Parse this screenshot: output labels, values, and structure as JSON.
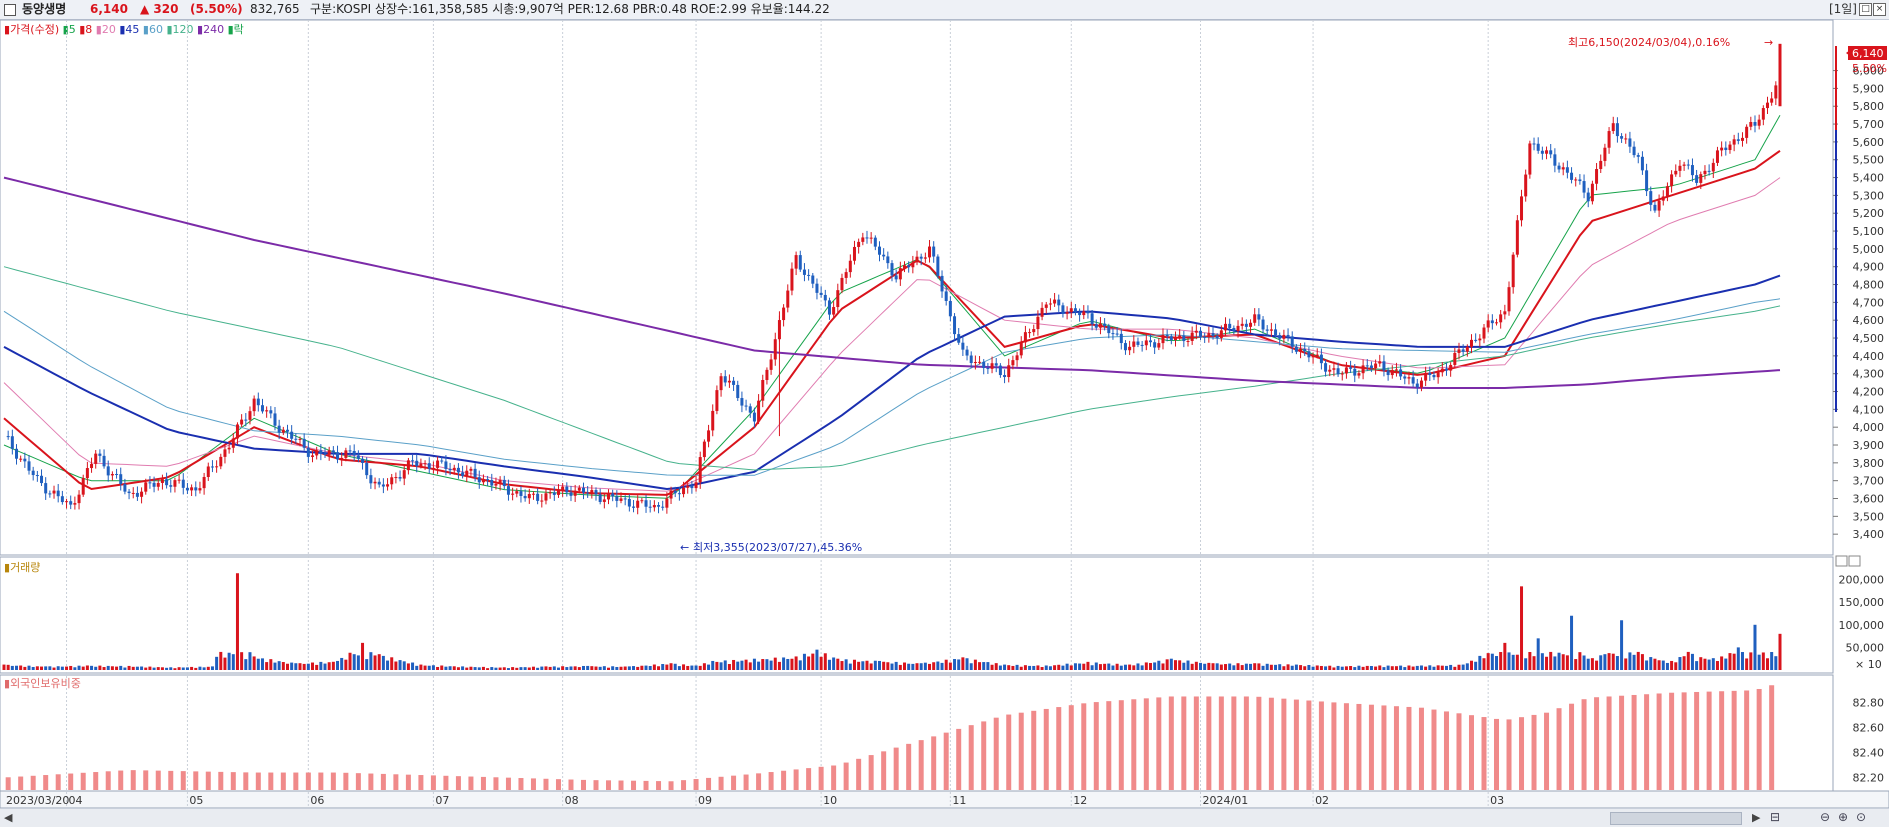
{
  "header": {
    "name": "동양생명",
    "price": "6,140",
    "change": "▲ 320",
    "rate": "(5.50%)",
    "volume": "832,765",
    "info": "구분:KOSPI 상장수:161,358,585 시총:9,907억 PER:12.68 PBR:0.48 ROE:2.99 유보율:144.22",
    "period": "[1일]"
  },
  "legend": {
    "price": "가격(수정)",
    "ma": [
      {
        "label": "5",
        "color": "#16a34a"
      },
      {
        "label": "8",
        "color": "#d9141c"
      },
      {
        "label": "20",
        "color": "#e07cb0"
      },
      {
        "label": "45",
        "color": "#1a2fb0"
      },
      {
        "label": "60",
        "color": "#5aa0c8"
      },
      {
        "label": "120",
        "color": "#46b28c"
      },
      {
        "label": "240",
        "color": "#7b2ba8"
      }
    ],
    "extra": "락"
  },
  "annotations": {
    "high": "최고6,150(2024/03/04),0.16%",
    "low": "최저3,355(2023/07/27),45.36%",
    "last_price": "6,140",
    "last_rate": "5.50%"
  },
  "volume_label": "거래량",
  "volume_multiplier": "× 10",
  "foreign_label": "외국인보유비중",
  "chart_data": {
    "type": "candlestick",
    "x_labels": [
      "2023/03/20",
      "04",
      "05",
      "06",
      "07",
      "08",
      "09",
      "10",
      "11",
      "12",
      "2024/01",
      "02",
      "03"
    ],
    "price_axis": [
      "6,000",
      "5,900",
      "5,800",
      "5,700",
      "5,600",
      "5,500",
      "5,400",
      "5,300",
      "5,200",
      "5,100",
      "5,000",
      "4,900",
      "4,800",
      "4,700",
      "4,600",
      "4,500",
      "4,400",
      "4,300",
      "4,200",
      "4,100",
      "4,000",
      "3,900",
      "3,800",
      "3,700",
      "3,600",
      "3,500",
      "3,400"
    ],
    "volume_axis": [
      "200,000",
      "150,000",
      "100,000",
      "50,000"
    ],
    "foreign_axis": [
      "82.80",
      "82.60",
      "82.40",
      "82.20"
    ],
    "price_range": [
      3300,
      6250
    ],
    "volume_max": 230000,
    "foreign_range": [
      82.1,
      82.95
    ],
    "price_path": [
      [
        0,
        3950
      ],
      [
        8,
        3700
      ],
      [
        16,
        3550
      ],
      [
        22,
        3850
      ],
      [
        30,
        3620
      ],
      [
        38,
        3700
      ],
      [
        46,
        3650
      ],
      [
        54,
        3900
      ],
      [
        60,
        4150
      ],
      [
        66,
        4000
      ],
      [
        74,
        3850
      ],
      [
        84,
        3850
      ],
      [
        90,
        3650
      ],
      [
        98,
        3800
      ],
      [
        106,
        3780
      ],
      [
        116,
        3700
      ],
      [
        126,
        3600
      ],
      [
        136,
        3650
      ],
      [
        146,
        3600
      ],
      [
        156,
        3550
      ],
      [
        166,
        3700
      ],
      [
        172,
        4300
      ],
      [
        180,
        4050
      ],
      [
        190,
        4950
      ],
      [
        198,
        4650
      ],
      [
        206,
        5100
      ],
      [
        214,
        4850
      ],
      [
        222,
        5000
      ],
      [
        230,
        4400
      ],
      [
        240,
        4300
      ],
      [
        250,
        4700
      ],
      [
        260,
        4620
      ],
      [
        270,
        4450
      ],
      [
        280,
        4500
      ],
      [
        290,
        4520
      ],
      [
        300,
        4600
      ],
      [
        310,
        4450
      ],
      [
        320,
        4300
      ],
      [
        330,
        4350
      ],
      [
        338,
        4250
      ],
      [
        344,
        4300
      ],
      [
        352,
        4480
      ],
      [
        360,
        4650
      ],
      [
        366,
        5600
      ],
      [
        374,
        5450
      ],
      [
        380,
        5300
      ],
      [
        386,
        5700
      ],
      [
        392,
        5500
      ],
      [
        396,
        5200
      ],
      [
        402,
        5500
      ],
      [
        406,
        5380
      ],
      [
        412,
        5550
      ],
      [
        420,
        5700
      ],
      [
        426,
        5950
      ]
    ],
    "ma_lines": {
      "5": [
        [
          0,
          3900
        ],
        [
          20,
          3700
        ],
        [
          40,
          3700
        ],
        [
          60,
          4050
        ],
        [
          80,
          3850
        ],
        [
          100,
          3750
        ],
        [
          120,
          3650
        ],
        [
          140,
          3620
        ],
        [
          160,
          3600
        ],
        [
          180,
          4100
        ],
        [
          200,
          4750
        ],
        [
          220,
          4950
        ],
        [
          240,
          4400
        ],
        [
          260,
          4600
        ],
        [
          280,
          4480
        ],
        [
          300,
          4550
        ],
        [
          320,
          4350
        ],
        [
          340,
          4300
        ],
        [
          360,
          4500
        ],
        [
          380,
          5300
        ],
        [
          400,
          5350
        ],
        [
          420,
          5500
        ],
        [
          426,
          5750
        ]
      ],
      "8": [
        [
          0,
          4050
        ],
        [
          20,
          3650
        ],
        [
          40,
          3720
        ],
        [
          60,
          4000
        ],
        [
          80,
          3820
        ],
        [
          100,
          3780
        ],
        [
          120,
          3680
        ],
        [
          140,
          3630
        ],
        [
          160,
          3620
        ],
        [
          180,
          4000
        ],
        [
          200,
          4650
        ],
        [
          220,
          4950
        ],
        [
          240,
          4450
        ],
        [
          260,
          4580
        ],
        [
          280,
          4500
        ],
        [
          300,
          4520
        ],
        [
          320,
          4350
        ],
        [
          340,
          4290
        ],
        [
          360,
          4400
        ],
        [
          380,
          5150
        ],
        [
          400,
          5300
        ],
        [
          420,
          5450
        ],
        [
          426,
          5550
        ]
      ],
      "20": [
        [
          0,
          4250
        ],
        [
          20,
          3800
        ],
        [
          40,
          3780
        ],
        [
          60,
          3950
        ],
        [
          80,
          3850
        ],
        [
          100,
          3800
        ],
        [
          120,
          3700
        ],
        [
          140,
          3660
        ],
        [
          160,
          3640
        ],
        [
          180,
          3850
        ],
        [
          200,
          4400
        ],
        [
          220,
          4850
        ],
        [
          240,
          4600
        ],
        [
          260,
          4550
        ],
        [
          280,
          4550
        ],
        [
          300,
          4500
        ],
        [
          320,
          4400
        ],
        [
          340,
          4330
        ],
        [
          360,
          4350
        ],
        [
          380,
          4900
        ],
        [
          400,
          5150
        ],
        [
          420,
          5300
        ],
        [
          426,
          5400
        ]
      ],
      "45": [
        [
          0,
          4450
        ],
        [
          20,
          4200
        ],
        [
          40,
          3980
        ],
        [
          60,
          3880
        ],
        [
          80,
          3850
        ],
        [
          100,
          3850
        ],
        [
          120,
          3780
        ],
        [
          140,
          3720
        ],
        [
          160,
          3650
        ],
        [
          180,
          3750
        ],
        [
          200,
          4050
        ],
        [
          220,
          4400
        ],
        [
          240,
          4620
        ],
        [
          260,
          4650
        ],
        [
          280,
          4610
        ],
        [
          300,
          4520
        ],
        [
          320,
          4480
        ],
        [
          340,
          4450
        ],
        [
          360,
          4450
        ],
        [
          380,
          4600
        ],
        [
          400,
          4700
        ],
        [
          420,
          4800
        ],
        [
          426,
          4850
        ]
      ],
      "60": [
        [
          0,
          4650
        ],
        [
          20,
          4350
        ],
        [
          40,
          4100
        ],
        [
          60,
          3980
        ],
        [
          80,
          3950
        ],
        [
          100,
          3900
        ],
        [
          120,
          3820
        ],
        [
          140,
          3770
        ],
        [
          160,
          3730
        ],
        [
          180,
          3730
        ],
        [
          200,
          3900
        ],
        [
          220,
          4200
        ],
        [
          240,
          4420
        ],
        [
          260,
          4500
        ],
        [
          280,
          4520
        ],
        [
          300,
          4480
        ],
        [
          320,
          4440
        ],
        [
          340,
          4430
        ],
        [
          360,
          4420
        ],
        [
          380,
          4520
        ],
        [
          400,
          4600
        ],
        [
          420,
          4700
        ],
        [
          426,
          4720
        ]
      ],
      "120": [
        [
          0,
          4900
        ],
        [
          40,
          4650
        ],
        [
          80,
          4450
        ],
        [
          120,
          4150
        ],
        [
          160,
          3800
        ],
        [
          180,
          3760
        ],
        [
          200,
          3780
        ],
        [
          220,
          3900
        ],
        [
          240,
          4000
        ],
        [
          260,
          4100
        ],
        [
          280,
          4170
        ],
        [
          300,
          4230
        ],
        [
          320,
          4300
        ],
        [
          340,
          4350
        ],
        [
          360,
          4400
        ],
        [
          380,
          4500
        ],
        [
          400,
          4580
        ],
        [
          420,
          4650
        ],
        [
          426,
          4680
        ]
      ],
      "240": [
        [
          0,
          5400
        ],
        [
          60,
          5050
        ],
        [
          120,
          4750
        ],
        [
          180,
          4430
        ],
        [
          220,
          4350
        ],
        [
          260,
          4320
        ],
        [
          300,
          4260
        ],
        [
          340,
          4220
        ],
        [
          360,
          4220
        ],
        [
          380,
          4240
        ],
        [
          400,
          4280
        ],
        [
          426,
          4320
        ]
      ]
    },
    "volume_profile": [
      [
        0,
        12000
      ],
      [
        10,
        8000
      ],
      [
        20,
        10000
      ],
      [
        30,
        9000
      ],
      [
        40,
        6000
      ],
      [
        50,
        8000
      ],
      [
        56,
        214000
      ],
      [
        60,
        30000
      ],
      [
        70,
        15000
      ],
      [
        80,
        20000
      ],
      [
        86,
        60000
      ],
      [
        90,
        35000
      ],
      [
        100,
        12000
      ],
      [
        110,
        8000
      ],
      [
        120,
        6000
      ],
      [
        130,
        8000
      ],
      [
        140,
        9000
      ],
      [
        150,
        8000
      ],
      [
        160,
        15000
      ],
      [
        166,
        10000
      ],
      [
        170,
        20000
      ],
      [
        180,
        25000
      ],
      [
        190,
        30000
      ],
      [
        195,
        45000
      ],
      [
        200,
        25000
      ],
      [
        210,
        20000
      ],
      [
        220,
        15000
      ],
      [
        230,
        28000
      ],
      [
        240,
        12000
      ],
      [
        250,
        10000
      ],
      [
        260,
        18000
      ],
      [
        270,
        12000
      ],
      [
        280,
        25000
      ],
      [
        290,
        15000
      ],
      [
        300,
        15000
      ],
      [
        310,
        12000
      ],
      [
        320,
        9000
      ],
      [
        330,
        10000
      ],
      [
        340,
        10000
      ],
      [
        350,
        12000
      ],
      [
        360,
        60000
      ],
      [
        364,
        185000
      ],
      [
        368,
        70000
      ],
      [
        372,
        30000
      ],
      [
        376,
        120000
      ],
      [
        380,
        25000
      ],
      [
        384,
        35000
      ],
      [
        388,
        110000
      ],
      [
        392,
        40000
      ],
      [
        396,
        25000
      ],
      [
        400,
        20000
      ],
      [
        404,
        40000
      ],
      [
        408,
        25000
      ],
      [
        412,
        30000
      ],
      [
        416,
        50000
      ],
      [
        420,
        100000
      ],
      [
        426,
        80000
      ]
    ],
    "foreign_profile": [
      [
        0,
        82.2
      ],
      [
        30,
        82.26
      ],
      [
        60,
        82.24
      ],
      [
        80,
        82.24
      ],
      [
        100,
        82.22
      ],
      [
        120,
        82.2
      ],
      [
        140,
        82.18
      ],
      [
        160,
        82.17
      ],
      [
        180,
        82.23
      ],
      [
        200,
        82.3
      ],
      [
        220,
        82.5
      ],
      [
        240,
        82.7
      ],
      [
        260,
        82.8
      ],
      [
        280,
        82.85
      ],
      [
        300,
        82.85
      ],
      [
        320,
        82.8
      ],
      [
        340,
        82.76
      ],
      [
        360,
        82.66
      ],
      [
        370,
        82.72
      ],
      [
        380,
        82.84
      ],
      [
        400,
        82.88
      ],
      [
        420,
        82.9
      ],
      [
        426,
        82.96
      ]
    ]
  }
}
